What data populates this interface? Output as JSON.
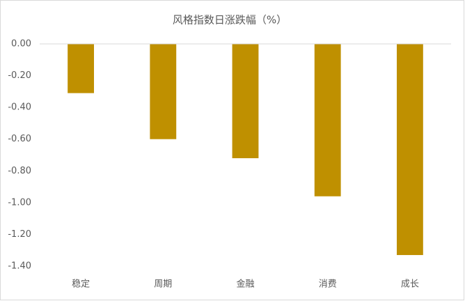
{
  "chart_data": {
    "type": "bar",
    "title": "风格指数日涨跌幅（%）",
    "categories": [
      "稳定",
      "周期",
      "金融",
      "消费",
      "成长"
    ],
    "values": [
      -0.31,
      -0.6,
      -0.72,
      -0.96,
      -1.33
    ],
    "color": "#bf9000",
    "ylim": [
      -1.4,
      0
    ],
    "yticks": [
      {
        "value": 0,
        "label": "0.00"
      },
      {
        "value": -0.2,
        "label": "-0.20"
      },
      {
        "value": -0.4,
        "label": "-0.40"
      },
      {
        "value": -0.6,
        "label": "-0.60"
      },
      {
        "value": -0.8,
        "label": "-0.80"
      },
      {
        "value": -1.0,
        "label": "-1.00"
      },
      {
        "value": -1.2,
        "label": "-1.20"
      },
      {
        "value": -1.4,
        "label": "-1.40"
      }
    ],
    "grid": false
  }
}
